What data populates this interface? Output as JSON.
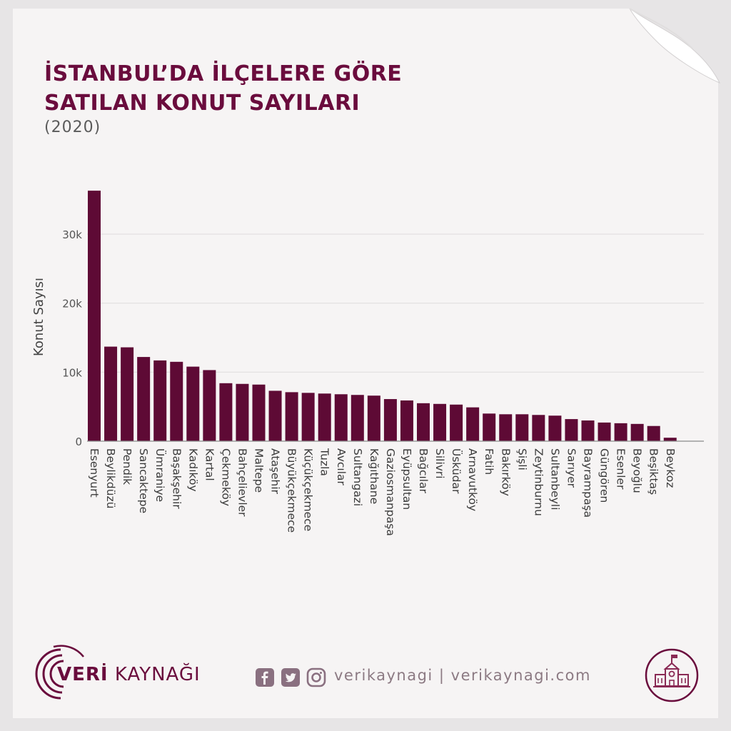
{
  "header": {
    "title_line1": "İSTANBUL’DA İLÇELERE GÖRE",
    "title_line2": "SATILAN KONUT SAYILARI",
    "subtitle": "(2020)"
  },
  "footer": {
    "brand_bold": "VERİ",
    "brand_rest": " KAYNAĞI",
    "handle": "verikaynagi | verikaynagi.com"
  },
  "colors": {
    "bar": "#5e0a35",
    "accent": "#6a0c3d",
    "grid": "#e2dfe0",
    "axis": "#8a8a8a",
    "icon": "#8a7080"
  },
  "chart_data": {
    "type": "bar",
    "ylabel": "Konut Sayısı",
    "xlabel": "",
    "ylim": [
      0,
      36000
    ],
    "yticks": [
      0,
      10000,
      20000,
      30000
    ],
    "ytick_labels": [
      "0",
      "10k",
      "20k",
      "30k"
    ],
    "grid": true,
    "categories": [
      "Esenyurt",
      "Beylikdüzü",
      "Pendik",
      "Sancaktepe",
      "Ümraniye",
      "Başakşehir",
      "Kadıköy",
      "Kartal",
      "Çekmeköy",
      "Bahçelievler",
      "Maltepe",
      "Ataşehir",
      "Büyükçekmece",
      "Küçükçekmece",
      "Tuzla",
      "Avcılar",
      "Sultangazi",
      "Kağıthane",
      "Gaziosmanpaşa",
      "Eyüpsultan",
      "Bağcılar",
      "Silivri",
      "Üsküdar",
      "Arnavutköy",
      "Fatih",
      "Bakırköy",
      "Şişli",
      "Zeytinburnu",
      "Sultanbeyli",
      "Sarıyer",
      "Bayrampaşa",
      "Güngören",
      "Esenler",
      "Beyoğlu",
      "Beşiktaş",
      "Beykoz"
    ],
    "values": [
      36300,
      13700,
      13600,
      12200,
      11700,
      11500,
      10800,
      10300,
      8400,
      8300,
      8200,
      7300,
      7100,
      7000,
      6900,
      6800,
      6700,
      6600,
      6100,
      5900,
      5500,
      5400,
      5300,
      4900,
      4000,
      3900,
      3900,
      3800,
      3700,
      3200,
      3000,
      2700,
      2600,
      2500,
      2200,
      500
    ]
  }
}
